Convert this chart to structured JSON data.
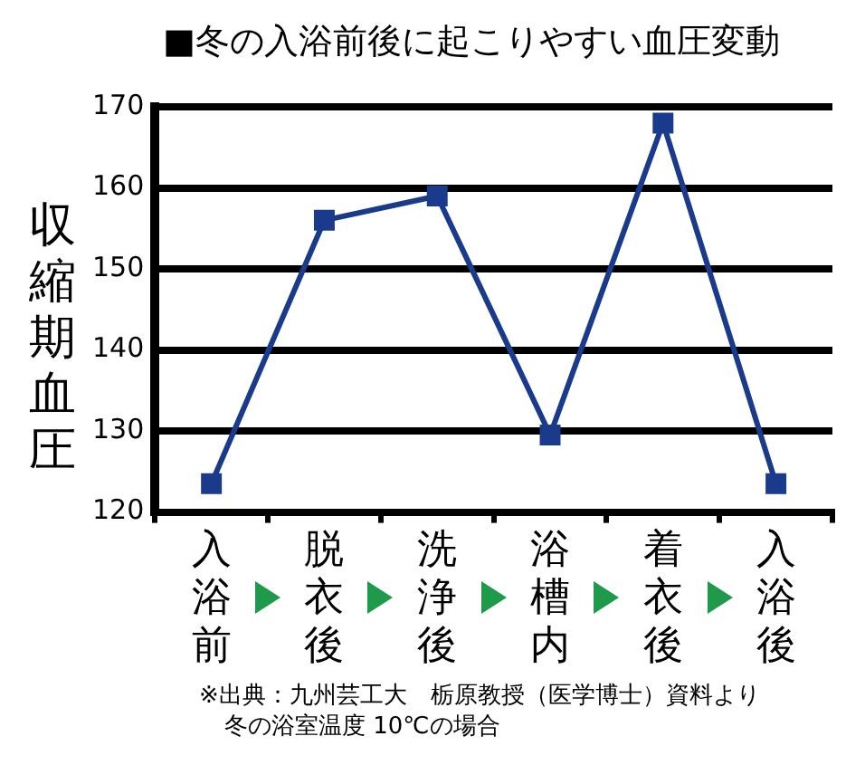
{
  "chart_data": {
    "type": "line",
    "title": "■冬の入浴前後に起こりやすい血圧変動",
    "ylabel": "収縮期血圧",
    "categories": [
      "入浴前",
      "脱衣後",
      "洗浄後",
      "浴槽内",
      "着衣後",
      "入浴後"
    ],
    "series": [
      {
        "color": "#1a3a8c",
        "values": [
          123.5,
          156,
          159,
          129.5,
          168,
          123.5
        ]
      }
    ],
    "ylim": [
      120,
      170
    ],
    "yticks": [
      120,
      130,
      140,
      150,
      160,
      170
    ],
    "grid": "y",
    "legend": false,
    "marker": "square",
    "line_style": "solid",
    "annotations": [
      "※出典：九州芸工大　栃原教授（医学博士）資料より",
      "冬の浴室温度 10℃の場合"
    ]
  }
}
